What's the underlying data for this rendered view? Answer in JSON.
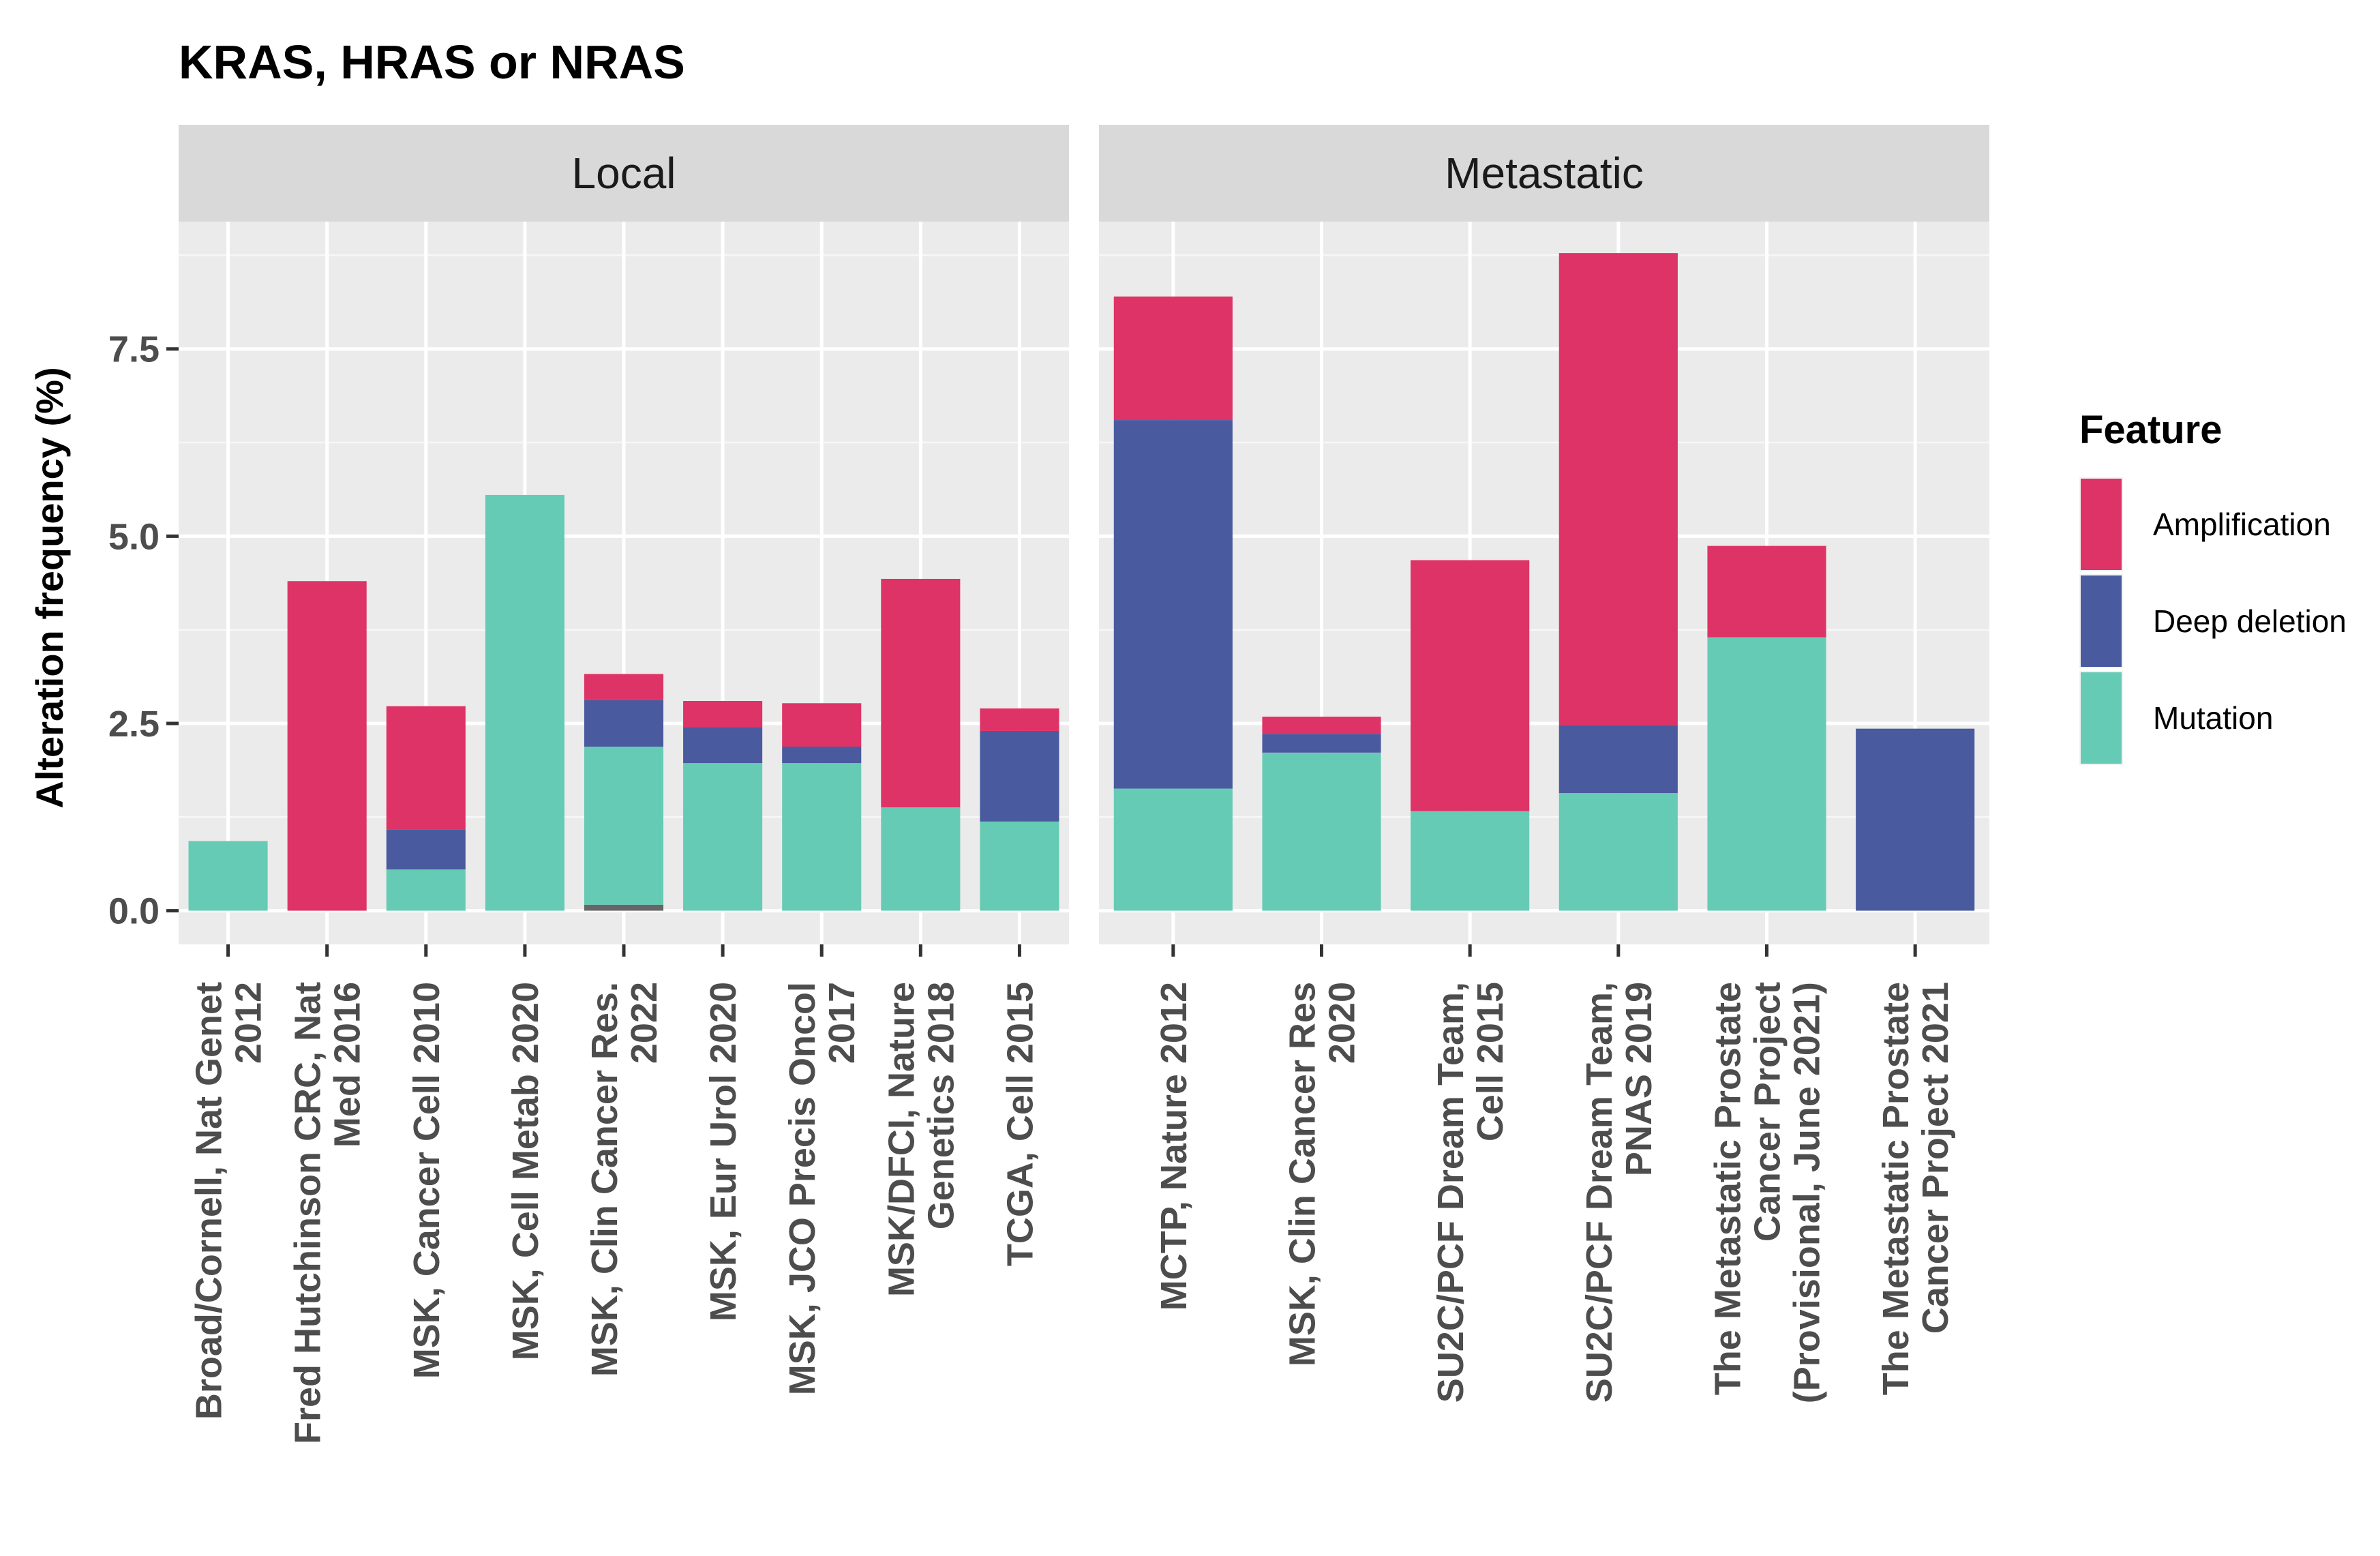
{
  "chart_data": {
    "type": "bar",
    "stacked": true,
    "title": "KRAS, HRAS or NRAS",
    "xlabel": "",
    "ylabel": "Alteration frequency (%)",
    "ylim": [
      -0.45,
      9.2
    ],
    "yticks": [
      0.0,
      2.5,
      5.0,
      7.5
    ],
    "ytick_labels": [
      "0.0",
      "2.5",
      "5.0",
      "7.5"
    ],
    "grid": true,
    "legend": {
      "title": "Feature",
      "position": "right",
      "items": [
        {
          "name": "Amplification",
          "color": "#dd3366"
        },
        {
          "name": "Deep deletion",
          "color": "#4a5a9e"
        },
        {
          "name": "Mutation",
          "color": "#66cbb4"
        }
      ]
    },
    "colors": {
      "Amplification": "#dd3366",
      "Deep deletion": "#4a5a9e",
      "Mutation": "#66cbb4",
      "Other": "#666666"
    },
    "panels": [
      {
        "name": "Local",
        "studies": [
          {
            "label": [
              "Broad/Cornell, Nat Genet",
              "2012"
            ],
            "Mutation": 0.93,
            "Deep deletion": 0,
            "Amplification": 0
          },
          {
            "label": [
              "Fred Hutchinson CRC, Nat",
              "Med 2016"
            ],
            "Mutation": 0,
            "Deep deletion": 0,
            "Amplification": 4.4
          },
          {
            "label": [
              "MSK, Cancer Cell 2010"
            ],
            "Mutation": 0.55,
            "Deep deletion": 0.53,
            "Amplification": 1.65
          },
          {
            "label": [
              "MSK, Cell Metab 2020"
            ],
            "Mutation": 5.55,
            "Deep deletion": 0,
            "Amplification": 0
          },
          {
            "label": [
              "MSK, Clin Cancer Res.",
              "2022"
            ],
            "Other": 0.08,
            "Mutation": 2.11,
            "Deep deletion": 0.62,
            "Amplification": 0.35
          },
          {
            "label": [
              "MSK, Eur Urol 2020"
            ],
            "Mutation": 1.97,
            "Deep deletion": 0.48,
            "Amplification": 0.35
          },
          {
            "label": [
              "MSK, JCO Precis Oncol",
              "2017"
            ],
            "Mutation": 1.97,
            "Deep deletion": 0.22,
            "Amplification": 0.58
          },
          {
            "label": [
              "MSK/DFCI, Nature",
              "Genetics 2018"
            ],
            "Mutation": 1.38,
            "Deep deletion": 0,
            "Amplification": 3.05
          },
          {
            "label": [
              "TCGA, Cell 2015"
            ],
            "Mutation": 1.19,
            "Deep deletion": 1.21,
            "Amplification": 0.3
          }
        ]
      },
      {
        "name": "Metastatic",
        "studies": [
          {
            "label": [
              "MCTP, Nature 2012"
            ],
            "Mutation": 1.63,
            "Deep deletion": 4.92,
            "Amplification": 1.65
          },
          {
            "label": [
              "MSK, Clin Cancer Res",
              "2020"
            ],
            "Mutation": 2.11,
            "Deep deletion": 0.25,
            "Amplification": 0.23
          },
          {
            "label": [
              "SU2C/PCF Dream Team,",
              "Cell 2015"
            ],
            "Mutation": 1.33,
            "Deep deletion": 0,
            "Amplification": 3.35
          },
          {
            "label": [
              "SU2C/PCF Dream Team,",
              "PNAS 2019"
            ],
            "Mutation": 1.57,
            "Deep deletion": 0.91,
            "Amplification": 6.3
          },
          {
            "label": [
              "The Metastatic Prostate",
              "Cancer Project",
              "(Provisional, June 2021)"
            ],
            "Mutation": 3.65,
            "Deep deletion": 0,
            "Amplification": 1.22
          },
          {
            "label": [
              "The Metastatic Prostate",
              "Cancer Project 2021"
            ],
            "Mutation": 0,
            "Deep deletion": 2.43,
            "Amplification": 0
          }
        ]
      }
    ]
  }
}
